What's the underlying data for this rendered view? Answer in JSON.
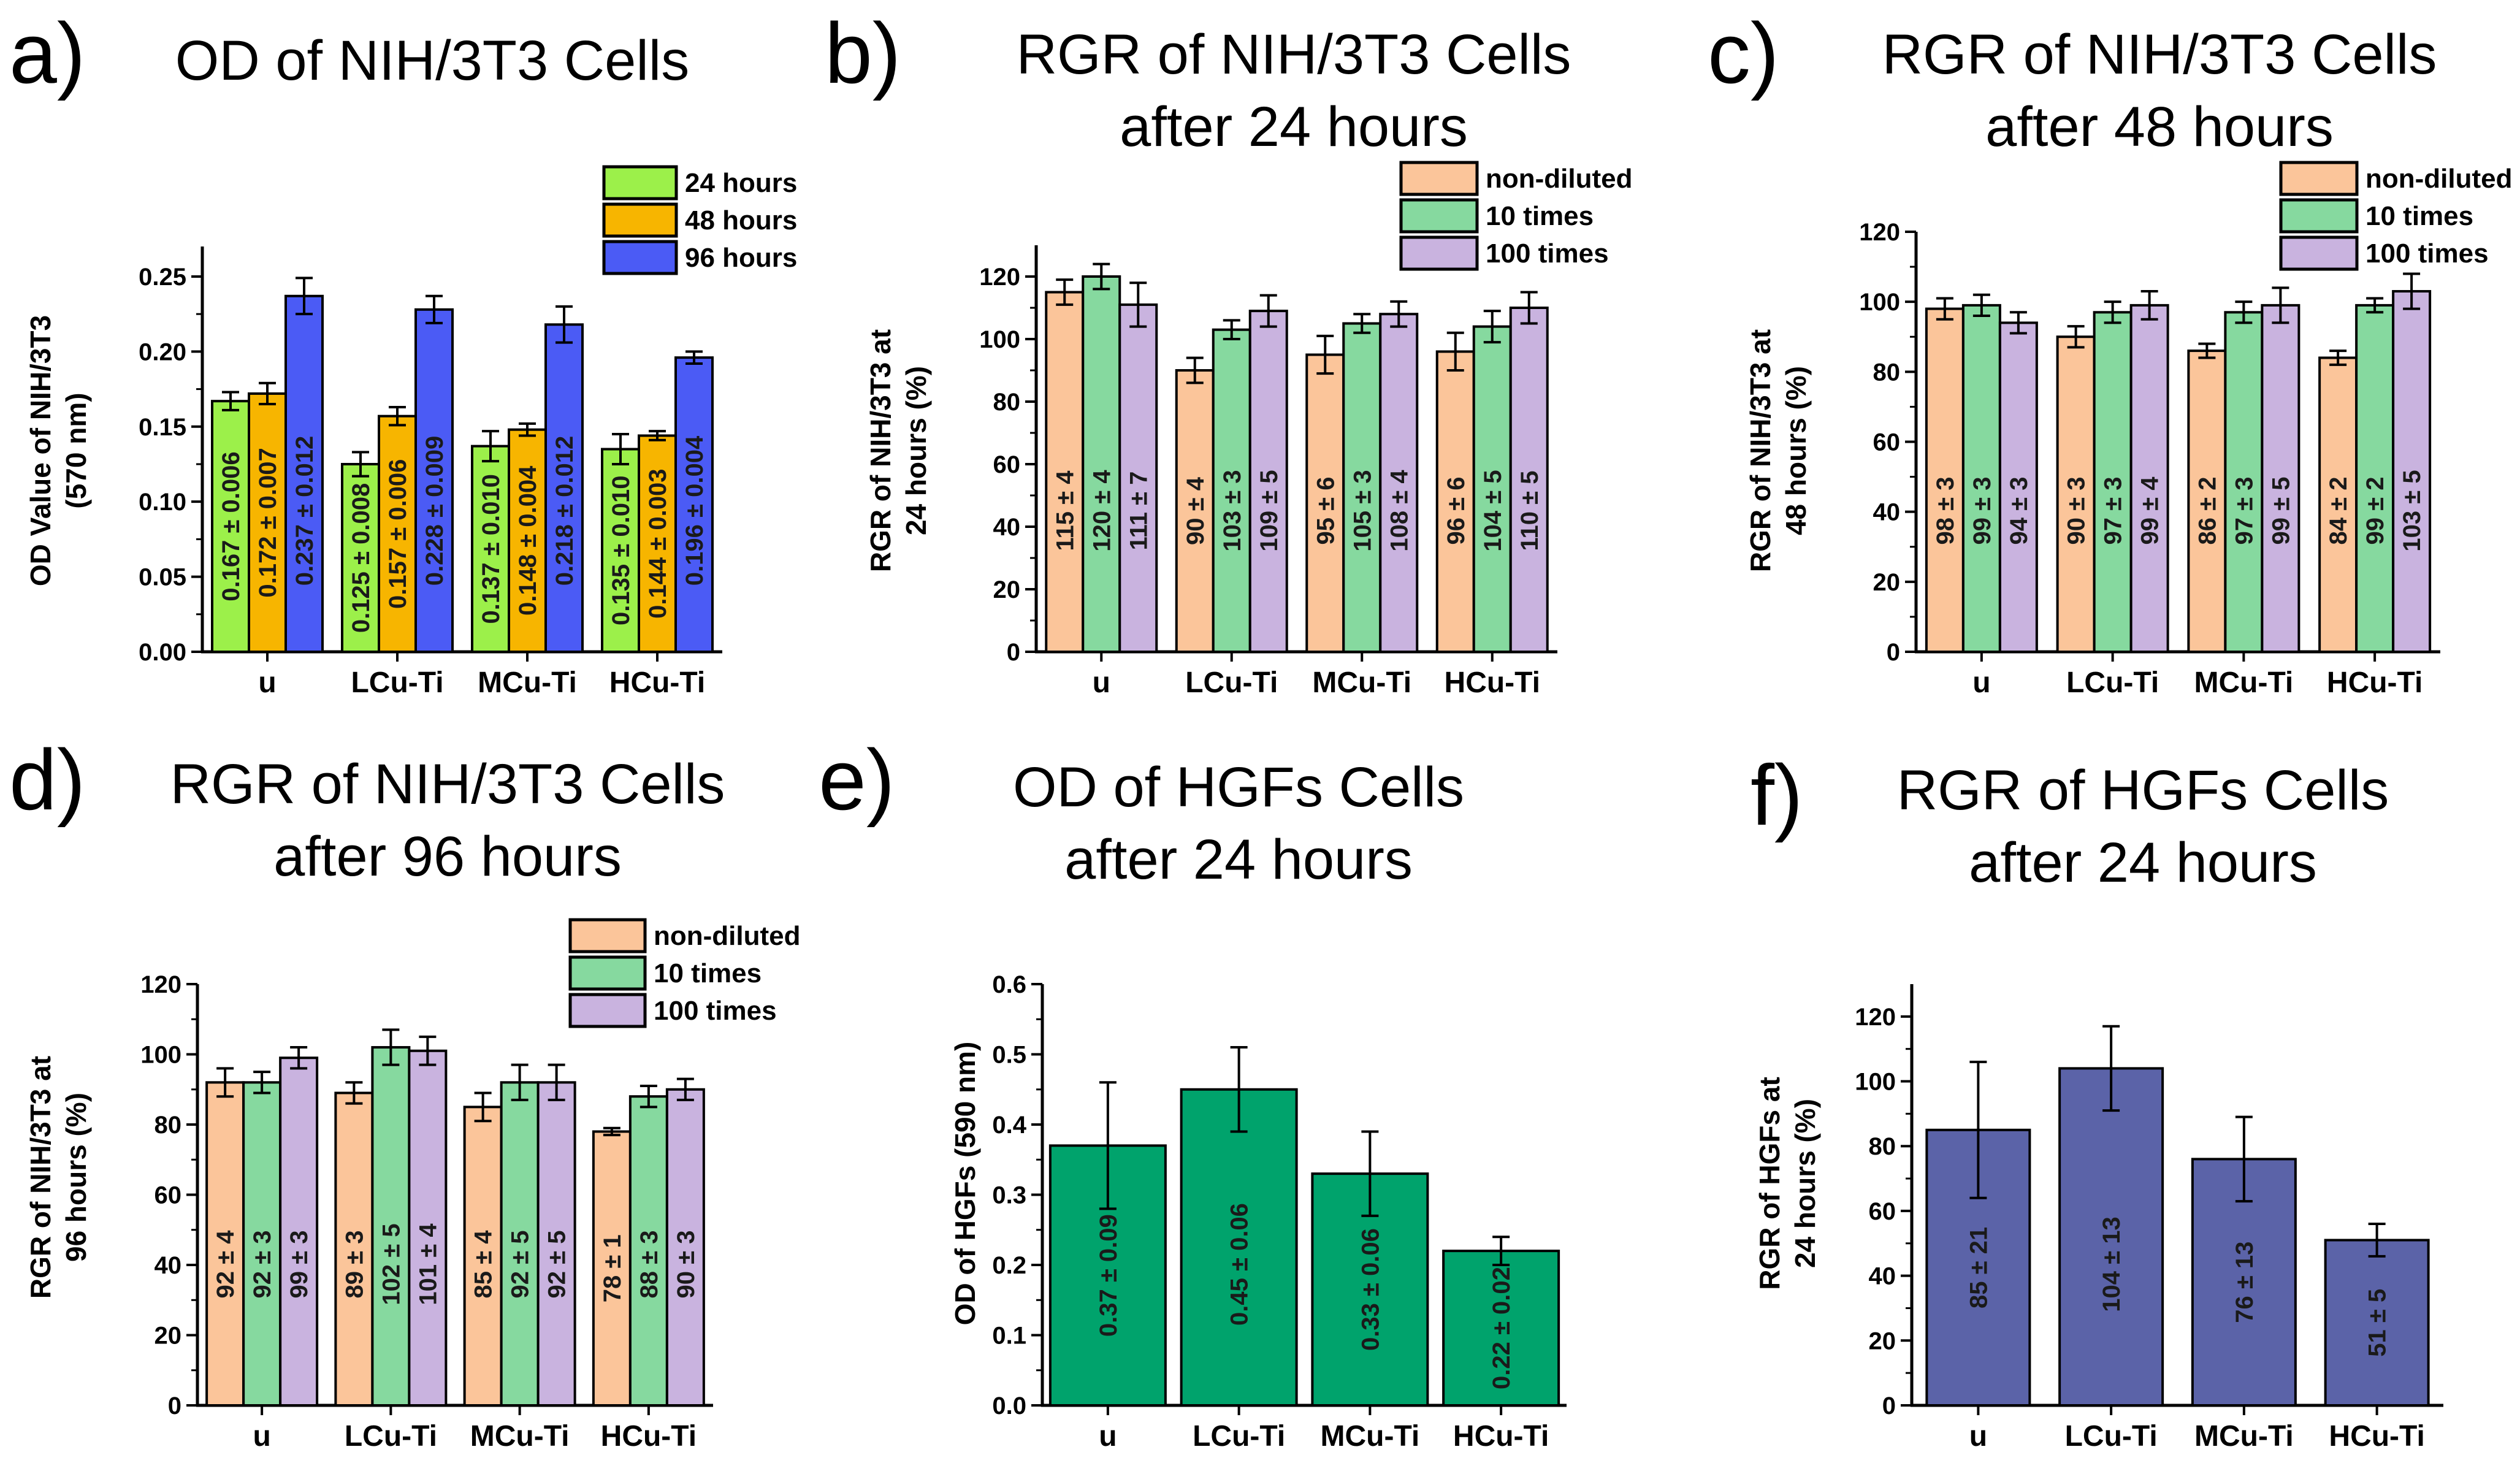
{
  "chart_data": [
    {
      "panel": "a)",
      "type": "bar",
      "title": [
        "OD of NIH/3T3 Cells"
      ],
      "ylabel": [
        "OD Value of NIH/3T3",
        "(570 nm)"
      ],
      "xlabel": "",
      "ylim": [
        0,
        0.27
      ],
      "yticks": [
        0,
        0.05,
        0.1,
        0.15,
        0.2,
        0.25
      ],
      "ytick_labels": [
        "0.00",
        "0.05",
        "0.10",
        "0.15",
        "0.20",
        "0.25"
      ],
      "categories": [
        "u",
        "LCu-Ti",
        "MCu-Ti",
        "HCu-Ti"
      ],
      "legend_position": "top-right",
      "series": [
        {
          "name": "24 hours",
          "color": "#9cf04a",
          "values": [
            0.167,
            0.125,
            0.137,
            0.135
          ],
          "errors": [
            0.006,
            0.008,
            0.01,
            0.01
          ],
          "labels": [
            "0.167 ± 0.006",
            "0.125 ± 0.008",
            "0.137 ± 0.010",
            "0.135 ± 0.010"
          ]
        },
        {
          "name": "48 hours",
          "color": "#f7b500",
          "values": [
            0.172,
            0.157,
            0.148,
            0.144
          ],
          "errors": [
            0.007,
            0.006,
            0.004,
            0.003
          ],
          "labels": [
            "0.172 ± 0.007",
            "0.157 ± 0.006",
            "0.148 ± 0.004",
            "0.144 ± 0.003"
          ]
        },
        {
          "name": "96 hours",
          "color": "#4b5bf5",
          "values": [
            0.237,
            0.228,
            0.218,
            0.196
          ],
          "errors": [
            0.012,
            0.009,
            0.012,
            0.004
          ],
          "labels": [
            "0.237 ± 0.012",
            "0.228 ± 0.009",
            "0.218 ± 0.012",
            "0.196 ± 0.004"
          ]
        }
      ]
    },
    {
      "panel": "b)",
      "type": "bar",
      "title": [
        "RGR of NIH/3T3 Cells",
        "after 24 hours"
      ],
      "ylabel": [
        "RGR of NIH/3T3 at",
        "24 hours (%)"
      ],
      "xlabel": "",
      "ylim": [
        0,
        130
      ],
      "yticks": [
        0,
        20,
        40,
        60,
        80,
        100,
        120
      ],
      "ytick_labels": [
        "0",
        "20",
        "40",
        "60",
        "80",
        "100",
        "120"
      ],
      "categories": [
        "u",
        "LCu-Ti",
        "MCu-Ti",
        "HCu-Ti"
      ],
      "legend_position": "top-right",
      "series": [
        {
          "name": "non-diluted",
          "color": "#fbc59a",
          "values": [
            115,
            90,
            95,
            96
          ],
          "errors": [
            4,
            4,
            6,
            6
          ],
          "labels": [
            "115 ± 4",
            "90 ± 4",
            "95 ± 6",
            "96 ± 6"
          ]
        },
        {
          "name": "10 times",
          "color": "#86d99f",
          "values": [
            120,
            103,
            105,
            104
          ],
          "errors": [
            4,
            3,
            3,
            5
          ],
          "labels": [
            "120 ± 4",
            "103 ± 3",
            "105 ± 3",
            "104 ± 5"
          ]
        },
        {
          "name": "100 times",
          "color": "#c9b3df",
          "values": [
            111,
            109,
            108,
            110
          ],
          "errors": [
            7,
            5,
            4,
            5
          ],
          "labels": [
            "111 ± 7",
            "109 ± 5",
            "108 ± 4",
            "110 ± 5"
          ]
        }
      ]
    },
    {
      "panel": "c)",
      "type": "bar",
      "title": [
        "RGR of NIH/3T3 Cells",
        "after 48 hours"
      ],
      "ylabel": [
        "RGR of NIH/3T3 at",
        "48 hours (%)"
      ],
      "xlabel": "",
      "ylim": [
        0,
        120
      ],
      "yticks": [
        0,
        20,
        40,
        60,
        80,
        100,
        120
      ],
      "ytick_labels": [
        "0",
        "20",
        "40",
        "60",
        "80",
        "100",
        "120"
      ],
      "categories": [
        "u",
        "LCu-Ti",
        "MCu-Ti",
        "HCu-Ti"
      ],
      "legend_position": "top-right",
      "series": [
        {
          "name": "non-diluted",
          "color": "#fbc59a",
          "values": [
            98,
            90,
            86,
            84
          ],
          "errors": [
            3,
            3,
            2,
            2
          ],
          "labels": [
            "98 ± 3",
            "90 ± 3",
            "86 ± 2",
            "84 ± 2"
          ]
        },
        {
          "name": "10 times",
          "color": "#86d99f",
          "values": [
            99,
            97,
            97,
            99
          ],
          "errors": [
            3,
            3,
            3,
            2
          ],
          "labels": [
            "99 ± 3",
            "97 ± 3",
            "97 ± 3",
            "99 ± 2"
          ]
        },
        {
          "name": "100 times",
          "color": "#c9b3df",
          "values": [
            94,
            99,
            99,
            103
          ],
          "errors": [
            3,
            4,
            5,
            5
          ],
          "labels": [
            "94 ± 3",
            "99 ± 4",
            "99 ± 5",
            "103 ± 5"
          ]
        }
      ]
    },
    {
      "panel": "d)",
      "type": "bar",
      "title": [
        "RGR of NIH/3T3 Cells",
        "after 96 hours"
      ],
      "ylabel": [
        "RGR of NIH/3T3 at",
        "96 hours (%)"
      ],
      "xlabel": "",
      "ylim": [
        0,
        120
      ],
      "yticks": [
        0,
        20,
        40,
        60,
        80,
        100,
        120
      ],
      "ytick_labels": [
        "0",
        "20",
        "40",
        "60",
        "80",
        "100",
        "120"
      ],
      "categories": [
        "u",
        "LCu-Ti",
        "MCu-Ti",
        "HCu-Ti"
      ],
      "legend_position": "top-right",
      "series": [
        {
          "name": "non-diluted",
          "color": "#fbc59a",
          "values": [
            92,
            89,
            85,
            78
          ],
          "errors": [
            4,
            3,
            4,
            1
          ],
          "labels": [
            "92 ± 4",
            "89 ± 3",
            "85 ± 4",
            "78 ± 1"
          ]
        },
        {
          "name": "10 times",
          "color": "#86d99f",
          "values": [
            92,
            102,
            92,
            88
          ],
          "errors": [
            3,
            5,
            5,
            3
          ],
          "labels": [
            "92 ± 3",
            "102 ± 5",
            "92 ± 5",
            "88 ± 3"
          ]
        },
        {
          "name": "100 times",
          "color": "#c9b3df",
          "values": [
            99,
            101,
            92,
            90
          ],
          "errors": [
            3,
            4,
            5,
            3
          ],
          "labels": [
            "99 ± 3",
            "101 ± 4",
            "92 ± 5",
            "90 ± 3"
          ]
        }
      ]
    },
    {
      "panel": "e)",
      "type": "bar",
      "title": [
        "OD of HGFs Cells",
        "after 24 hours"
      ],
      "ylabel": [
        "OD of HGFs (590 nm)"
      ],
      "xlabel": "",
      "ylim": [
        0,
        0.6
      ],
      "yticks": [
        0,
        0.1,
        0.2,
        0.3,
        0.4,
        0.5,
        0.6
      ],
      "ytick_labels": [
        "0.0",
        "0.1",
        "0.2",
        "0.3",
        "0.4",
        "0.5",
        "0.6"
      ],
      "categories": [
        "u",
        "LCu-Ti",
        "MCu-Ti",
        "HCu-Ti"
      ],
      "legend_position": "none",
      "series": [
        {
          "name": "OD",
          "color": "#00a36c",
          "values": [
            0.37,
            0.45,
            0.33,
            0.22
          ],
          "errors": [
            0.09,
            0.06,
            0.06,
            0.02
          ],
          "labels": [
            "0.37 ± 0.09",
            "0.45 ± 0.06",
            "0.33 ± 0.06",
            "0.22 ± 0.02"
          ]
        }
      ]
    },
    {
      "panel": "f)",
      "type": "bar",
      "title": [
        "RGR of HGFs Cells",
        "after 24 hours"
      ],
      "ylabel": [
        "RGR of HGFs at",
        "24 hours (%)"
      ],
      "xlabel": "",
      "ylim": [
        0,
        130
      ],
      "yticks": [
        0,
        20,
        40,
        60,
        80,
        100,
        120
      ],
      "ytick_labels": [
        "0",
        "20",
        "40",
        "60",
        "80",
        "100",
        "120"
      ],
      "categories": [
        "u",
        "LCu-Ti",
        "MCu-Ti",
        "HCu-Ti"
      ],
      "legend_position": "none",
      "series": [
        {
          "name": "RGR",
          "color": "#5b63a8",
          "values": [
            85,
            104,
            76,
            51
          ],
          "errors": [
            21,
            13,
            13,
            5
          ],
          "labels": [
            "85 ± 21",
            "104 ± 13",
            "76 ± 13",
            "51 ± 5"
          ]
        }
      ]
    }
  ]
}
